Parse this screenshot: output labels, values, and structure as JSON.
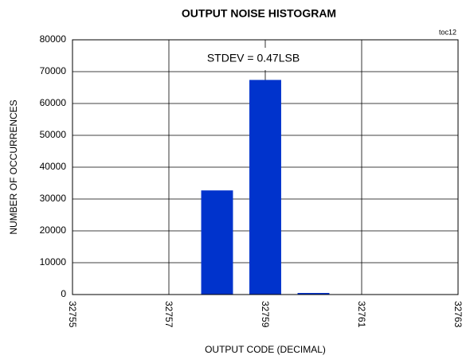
{
  "chart_data": {
    "type": "bar",
    "title": "OUTPUT NOISE HISTOGRAM",
    "x_label": "OUTPUT CODE (DECIMAL)",
    "y_label": "NUMBER OF OCCURRENCES",
    "annotations": [
      "STDEV = 0.47LSB",
      "toc12"
    ],
    "x": [
      32758,
      32759,
      32760
    ],
    "values": [
      32700,
      67400,
      500
    ],
    "color": "#0033cc",
    "xlim": [
      32755,
      32763
    ],
    "xticks": [
      32755,
      32757,
      32759,
      32761,
      32763
    ],
    "ylim": [
      0,
      80000
    ],
    "yticks": [
      0,
      10000,
      20000,
      30000,
      40000,
      50000,
      60000,
      70000,
      80000
    ],
    "grid": true
  }
}
